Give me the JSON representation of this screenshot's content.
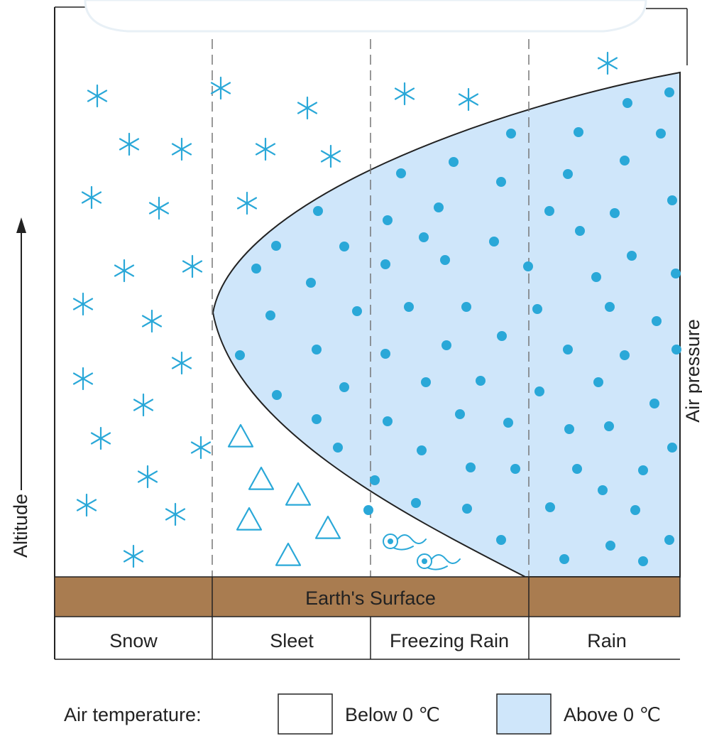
{
  "axis": {
    "y_label": "Altitude",
    "right_label": "Air pressure"
  },
  "surface_label": "Earth's Surface",
  "zones": [
    {
      "label": "Snow"
    },
    {
      "label": "Sleet"
    },
    {
      "label": "Freezing Rain"
    },
    {
      "label": "Rain"
    }
  ],
  "legend": {
    "title": "Air temperature:",
    "items": [
      {
        "label": "Below 0 ℃",
        "color": "#ffffff"
      },
      {
        "label": "Above 0 ℃",
        "color": "#cfe6fa"
      }
    ]
  },
  "colors": {
    "warm_layer": "#cfe6fa",
    "precip": "#2aa8d8",
    "ground": "#a97c50",
    "line": "#222222"
  },
  "icons": {
    "snow": "snowflake-icon",
    "rain": "raindrop-icon",
    "sleet": "sleet-triangle-icon",
    "freezing_rain": "freezing-drop-icon"
  }
}
